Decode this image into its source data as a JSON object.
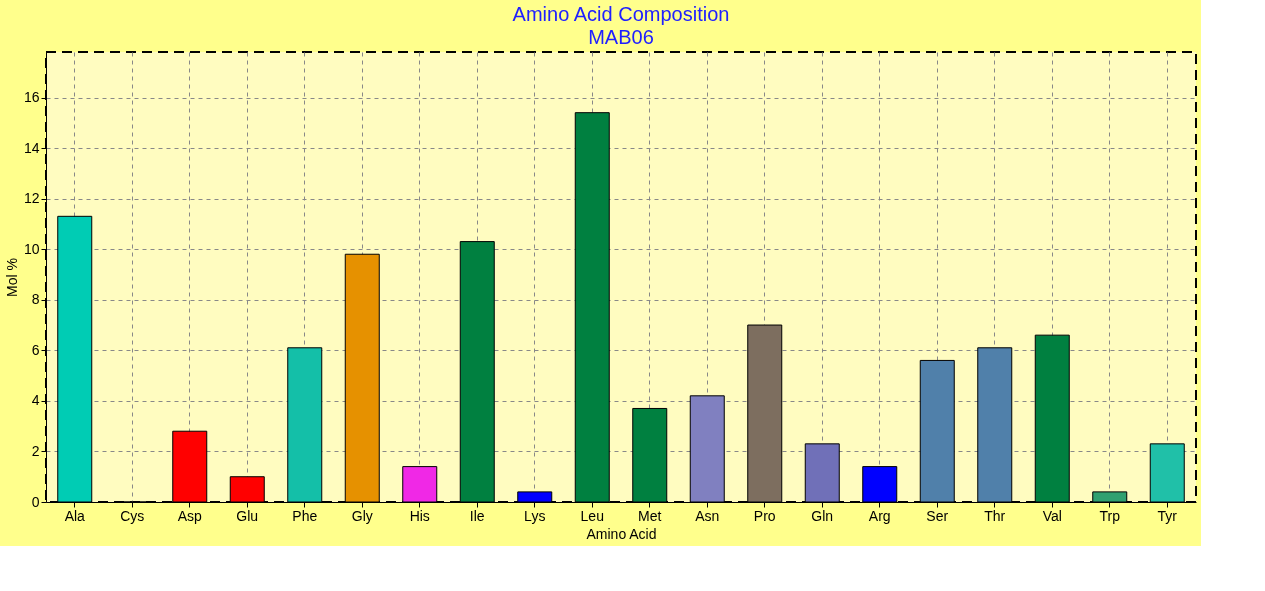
{
  "chart_data": {
    "type": "bar",
    "title": "Amino Acid Composition",
    "subtitle": "MAB06",
    "xlabel": "Amino Acid",
    "ylabel": "Mol %",
    "categories": [
      "Ala",
      "Cys",
      "Asp",
      "Glu",
      "Phe",
      "Gly",
      "His",
      "Ile",
      "Lys",
      "Leu",
      "Met",
      "Asn",
      "Pro",
      "Gln",
      "Arg",
      "Ser",
      "Thr",
      "Val",
      "Trp",
      "Tyr"
    ],
    "values": [
      11.3,
      0,
      2.8,
      1.0,
      6.1,
      9.8,
      1.4,
      10.3,
      0.4,
      15.4,
      3.7,
      4.2,
      7.0,
      2.3,
      1.4,
      5.6,
      6.1,
      6.6,
      0.4,
      2.3
    ],
    "colors": [
      "#00ccb4",
      "#00ccb4",
      "#ff0000",
      "#ff0000",
      "#14bfa8",
      "#e69100",
      "#f028e6",
      "#008040",
      "#0000ff",
      "#008040",
      "#008040",
      "#8080c0",
      "#7d6e5f",
      "#7070b8",
      "#0000ff",
      "#5080aa",
      "#5080aa",
      "#008040",
      "#30a070",
      "#20c0a8"
    ],
    "ylim": [
      0,
      17.8
    ],
    "yticks": [
      0,
      2,
      4,
      6,
      8,
      10,
      12,
      14,
      16
    ],
    "grid": true
  }
}
